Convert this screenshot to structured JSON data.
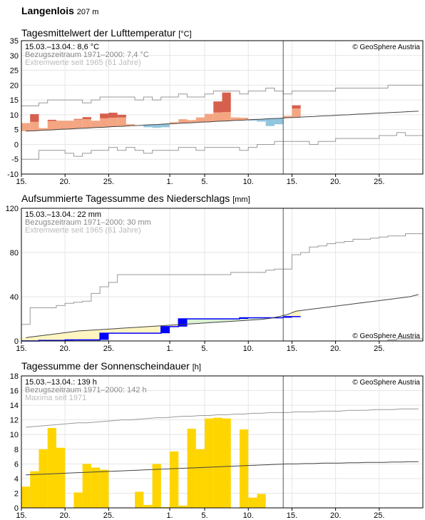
{
  "station": {
    "name": "Langenlois",
    "altitude": "207 m"
  },
  "copyright": "© GeoSphere Austria",
  "x_tick_labels": [
    "15.",
    "20.",
    "25.",
    "1.",
    "5.",
    "10.",
    "15.",
    "20.",
    "25."
  ],
  "colors": {
    "warm": "#f4a582",
    "very_warm": "#d6604d",
    "cool": "#92c5de",
    "precip_deficit": "#fff5c0",
    "precip_surplus": "#d9f0d3",
    "precip_bar": "#0000ff",
    "sun_bar": "#ffd500",
    "grid": "#e6e6e6",
    "extreme_line": "#999999",
    "mean_line": "#444444",
    "today_line": "#555555"
  },
  "chart_data": [
    {
      "type": "bar",
      "title": "Tagesmittelwert der Lufttemperatur",
      "unit": "[°C]",
      "info": {
        "current": "15.03.–13.04.: 8,6 °C",
        "reference": "Bezugszeitraum 1971–2000: 7,4 °C",
        "extremes": "Extremwerte seit 1965 (61 Jahre)"
      },
      "ylim": [
        -10,
        35
      ],
      "y_ticks": [
        "35",
        "30",
        "25",
        "20",
        "15",
        "10",
        "5",
        "0",
        "-5",
        "-10"
      ],
      "x_days": 46,
      "values": [
        7.2,
        10.2,
        5.5,
        8.3,
        8.0,
        8.0,
        8.6,
        9.2,
        8.0,
        10.4,
        10.7,
        10.0,
        6.8,
        6.4,
        5.8,
        5.6,
        5.8,
        7.5,
        8.5,
        8.2,
        9.1,
        10.3,
        14.5,
        17.5,
        9.1,
        9.0,
        8.0,
        7.7,
        6.2,
        6.8,
        9.6,
        13.2
      ],
      "climate_mean": [
        4.5,
        4.6,
        4.8,
        4.9,
        5.1,
        5.2,
        5.4,
        5.5,
        5.7,
        5.8,
        6.0,
        6.1,
        6.3,
        6.4,
        6.6,
        6.7,
        6.9,
        7.0,
        7.2,
        7.3,
        7.5,
        7.6,
        7.8,
        7.9,
        8.1,
        8.2,
        8.4,
        8.5,
        8.7,
        8.8,
        9.0,
        9.1,
        9.3,
        9.4,
        9.6,
        9.7,
        9.9,
        10.0,
        10.2,
        10.3,
        10.5,
        10.6,
        10.8,
        10.9,
        11.1,
        11.2
      ],
      "extreme_max": [
        13,
        13,
        14,
        15,
        15,
        15,
        15,
        14,
        15,
        16,
        16,
        16,
        16,
        15,
        16,
        15,
        16,
        16,
        17,
        16,
        16,
        17,
        18,
        18,
        18,
        17,
        18,
        18,
        19,
        18,
        17,
        18,
        18,
        18,
        18,
        18,
        19,
        19,
        19,
        19,
        19,
        19,
        20,
        20,
        20,
        20
      ],
      "extreme_min": [
        -5,
        -5,
        -2,
        -2,
        -2,
        -3,
        -4,
        -3,
        -2,
        -2,
        -1,
        -2,
        -1,
        -2,
        -3,
        -2,
        -2,
        -2,
        -1,
        -1,
        -2,
        -1,
        -1,
        -1,
        -1,
        -2,
        -1,
        0,
        0,
        1,
        1,
        1,
        1,
        0,
        1,
        1,
        2,
        2,
        2,
        2,
        2,
        3,
        3,
        4,
        3,
        3
      ]
    },
    {
      "type": "area",
      "title": "Aufsummierte Tagessumme des Niederschlags",
      "unit": "[mm]",
      "info": {
        "current": "15.03.–13.04.: 22 mm",
        "reference": "Bezugszeitraum 1971–2000: 30 mm",
        "extremes": "Extremwerte seit 1965 (61 Jahre)"
      },
      "ylim": [
        0,
        120
      ],
      "y_ticks": [
        "120",
        "80",
        "40",
        "0"
      ],
      "x_days": 46,
      "values": [
        0,
        0,
        0.5,
        0.5,
        0.5,
        1,
        1,
        1,
        1,
        7,
        7,
        7,
        7,
        7,
        7,
        7,
        13,
        13,
        20,
        20,
        20,
        20,
        20,
        20,
        20,
        21,
        21,
        21,
        21,
        21,
        22,
        22
      ],
      "climate_mean": [
        3,
        4,
        5,
        6,
        7,
        8,
        9,
        9.5,
        10,
        10.5,
        11,
        11.5,
        12,
        12.5,
        13,
        13.5,
        14,
        14.5,
        15,
        15.5,
        16,
        16.5,
        17,
        17.5,
        18,
        18.5,
        19,
        19.5,
        20.5,
        22,
        24,
        27,
        28,
        29,
        30,
        31,
        32,
        33,
        34,
        35,
        36,
        37,
        38,
        39,
        40,
        42
      ],
      "extreme_max": [
        15,
        30,
        30,
        30,
        32,
        34,
        35,
        36,
        43,
        49,
        53,
        60,
        60,
        60,
        60,
        60,
        60,
        60,
        60,
        60,
        60,
        60,
        60,
        60,
        62,
        62,
        62,
        62,
        64,
        65,
        65,
        78,
        80,
        85,
        86,
        88,
        89,
        90,
        92,
        92,
        93,
        94,
        95,
        95,
        97,
        97
      ],
      "extreme_min": [
        0,
        0,
        0,
        0,
        0,
        0,
        0,
        0,
        0,
        0,
        0,
        0,
        0,
        0,
        0,
        0,
        0,
        0,
        0,
        0,
        0,
        0,
        0,
        0,
        0,
        0,
        0,
        0,
        0,
        0,
        0,
        0,
        0,
        0,
        0,
        0,
        0,
        0,
        0,
        0,
        0,
        0,
        1,
        2,
        2,
        2
      ]
    },
    {
      "type": "bar",
      "title": "Tagessumme der Sonnenscheindauer",
      "unit": "[h]",
      "info": {
        "current": "15.03.–13.04.: 139 h",
        "reference": "Bezugszeitraum 1971–2000: 142 h",
        "extremes": "Maxima seit 1971"
      },
      "ylim": [
        0,
        18
      ],
      "y_ticks": [
        "18",
        "16",
        "14",
        "12",
        "10",
        "8",
        "6",
        "4",
        "2",
        "0"
      ],
      "x_days": 46,
      "values": [
        2.9,
        5.0,
        8.0,
        10.9,
        8.2,
        0,
        2.1,
        6.0,
        5.5,
        5.2,
        0,
        0,
        0,
        2.2,
        0.4,
        6.0,
        0.1,
        7.7,
        0.3,
        10.8,
        8.0,
        12.2,
        12.3,
        12.2,
        0,
        10.7,
        1.4,
        1.9,
        0,
        0,
        0,
        0
      ],
      "climate_mean": [
        4.5,
        4.55,
        4.6,
        4.65,
        4.7,
        4.75,
        4.8,
        4.85,
        4.9,
        4.95,
        5.0,
        5.05,
        5.1,
        5.15,
        5.2,
        5.25,
        5.3,
        5.35,
        5.4,
        5.45,
        5.5,
        5.55,
        5.6,
        5.65,
        5.7,
        5.75,
        5.8,
        5.85,
        5.9,
        5.95,
        6.0,
        6.0,
        6.05,
        6.05,
        6.1,
        6.1,
        6.1,
        6.15,
        6.15,
        6.2,
        6.2,
        6.2,
        6.25,
        6.25,
        6.3,
        6.3
      ],
      "extreme_max": [
        11.0,
        11.1,
        11.2,
        11.3,
        11.4,
        11.5,
        11.6,
        11.6,
        11.7,
        11.8,
        11.9,
        12.0,
        12.0,
        12.1,
        12.2,
        12.3,
        12.3,
        12.4,
        12.5,
        12.5,
        12.6,
        12.6,
        12.7,
        12.7,
        12.8,
        12.8,
        12.9,
        12.9,
        13.0,
        13.0,
        13.0,
        13.1,
        13.1,
        13.1,
        13.2,
        13.2,
        13.2,
        13.3,
        13.3,
        13.3,
        13.4,
        13.4,
        13.4,
        13.5,
        13.5,
        13.5
      ]
    }
  ]
}
